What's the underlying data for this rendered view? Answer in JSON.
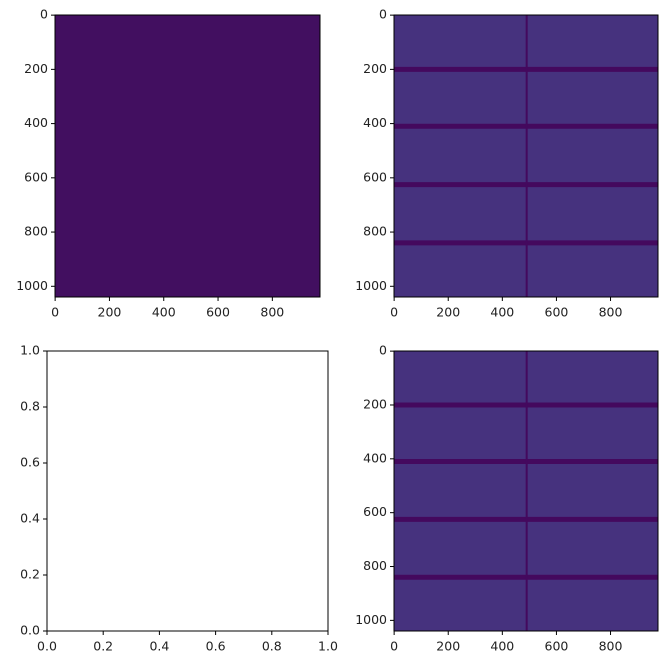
{
  "chart_data": [
    {
      "type": "image",
      "color": "#420f60",
      "xlim": [
        -0.5,
        975.5
      ],
      "ylim": [
        1039.5,
        -0.5
      ],
      "xticks": [
        0,
        200,
        400,
        600,
        800
      ],
      "yticks": [
        0,
        200,
        400,
        600,
        800,
        1000
      ]
    },
    {
      "type": "image",
      "color": "#46327e",
      "line_color": "#44095e",
      "row_lines": [
        200,
        410,
        625,
        840
      ],
      "column_lines": [
        490
      ],
      "xlim": [
        -0.5,
        975.5
      ],
      "ylim": [
        1039.5,
        -0.5
      ],
      "xticks": [
        0,
        200,
        400,
        600,
        800
      ],
      "yticks": [
        0,
        200,
        400,
        600,
        800,
        1000
      ]
    },
    {
      "type": "axes",
      "xlim": [
        0,
        1
      ],
      "ylim": [
        0,
        1
      ],
      "xticks": [
        {
          "value": 0,
          "label": "0.0"
        },
        {
          "value": 0.2,
          "label": "0.2"
        },
        {
          "value": 0.4,
          "label": "0.4"
        },
        {
          "value": 0.6,
          "label": "0.6"
        },
        {
          "value": 0.8,
          "label": "0.8"
        },
        {
          "value": 1,
          "label": "1.0"
        }
      ],
      "yticks": [
        {
          "value": 0,
          "label": "0.0"
        },
        {
          "value": 0.2,
          "label": "0.2"
        },
        {
          "value": 0.4,
          "label": "0.4"
        },
        {
          "value": 0.6,
          "label": "0.6"
        },
        {
          "value": 0.8,
          "label": "0.8"
        },
        {
          "value": 1,
          "label": "1.0"
        }
      ]
    },
    {
      "type": "image",
      "color": "#46327e",
      "line_color": "#44095e",
      "row_lines": [
        200,
        410,
        625,
        840
      ],
      "column_lines": [
        490
      ],
      "xlim": [
        -0.5,
        975.5
      ],
      "ylim": [
        1039.5,
        -0.5
      ],
      "xticks": [
        0,
        200,
        400,
        600,
        800
      ],
      "yticks": [
        0,
        200,
        400,
        600,
        800,
        1000
      ]
    }
  ]
}
